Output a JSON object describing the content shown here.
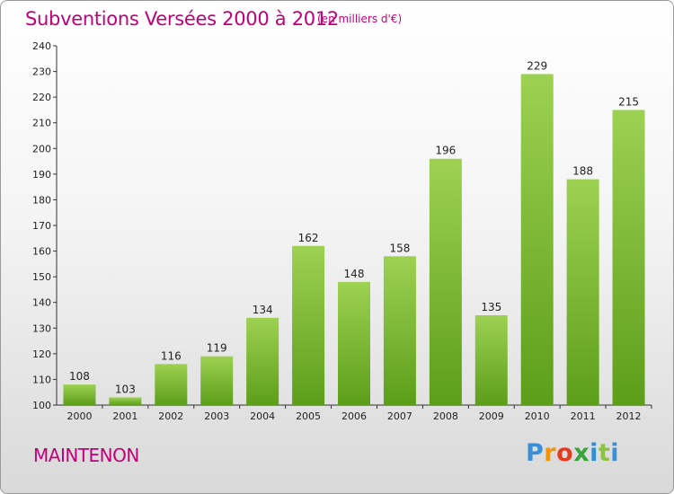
{
  "header": {
    "title": "Subventions Versées 2000 à 2012",
    "subtitle": "(en milliers d'€)"
  },
  "footer": {
    "town": "MAINTENON",
    "logo_letters": [
      "P",
      "r",
      "o",
      "x",
      "i",
      "t",
      "i"
    ]
  },
  "colors": {
    "title": "#c0007b",
    "bar_top": "#9dd152",
    "bar_bottom": "#5c9e19"
  },
  "chart_data": {
    "type": "bar",
    "title": "Subventions Versées 2000 à 2012",
    "subtitle": "(en milliers d'€)",
    "xlabel": "",
    "ylabel": "",
    "categories": [
      "2000",
      "2001",
      "2002",
      "2003",
      "2004",
      "2005",
      "2006",
      "2007",
      "2008",
      "2009",
      "2010",
      "2011",
      "2012"
    ],
    "values": [
      108,
      103,
      116,
      119,
      134,
      162,
      148,
      158,
      196,
      135,
      229,
      188,
      215
    ],
    "ylim": [
      100,
      240
    ],
    "yticks": [
      100,
      110,
      120,
      130,
      140,
      150,
      160,
      170,
      180,
      190,
      200,
      210,
      220,
      230,
      240
    ],
    "grid": false,
    "legend": "none"
  }
}
